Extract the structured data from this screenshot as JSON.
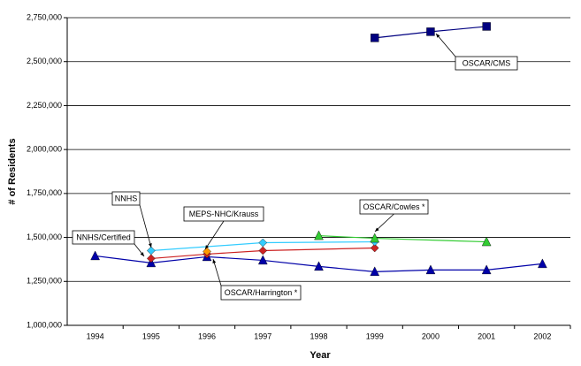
{
  "chart_data": {
    "type": "line",
    "x_label": "Year",
    "y_label": "# of Residents",
    "xlim": [
      1993.5,
      2002.5
    ],
    "xticks": [
      1994,
      1995,
      1996,
      1997,
      1998,
      1999,
      2000,
      2001,
      2002
    ],
    "ylim": [
      1000000,
      2750000
    ],
    "yticks": [
      {
        "value": 1000000,
        "label": "1,000,000"
      },
      {
        "value": 1250000,
        "label": "1,250,000"
      },
      {
        "value": 1500000,
        "label": "1,500,000"
      },
      {
        "value": 1750000,
        "label": "1,750,000"
      },
      {
        "value": 2000000,
        "label": "2,000,000"
      },
      {
        "value": 2250000,
        "label": "2,250,000"
      },
      {
        "value": 2500000,
        "label": "2,500,000"
      },
      {
        "value": 2750000,
        "label": "2,750,000"
      }
    ],
    "grid": true,
    "series": [
      {
        "name": "OSCAR/Harrington *",
        "color": "#0000a8",
        "marker": "triangle",
        "x": [
          1994,
          1995,
          1996,
          1997,
          1998,
          1999,
          2000,
          2001,
          2002
        ],
        "values": [
          1395000,
          1355000,
          1390000,
          1370000,
          1335000,
          1305000,
          1315000,
          1315000,
          1350000
        ]
      },
      {
        "name": "NNHS/Certified",
        "color": "#cc2222",
        "marker": "diamond",
        "x": [
          1995,
          1996,
          1997,
          1999
        ],
        "values": [
          1380000,
          1405000,
          1425000,
          1440000
        ]
      },
      {
        "name": "NNHS",
        "color": "#33ccff",
        "marker": "diamond",
        "x": [
          1995,
          1997,
          1999
        ],
        "values": [
          1425000,
          1470000,
          1475000
        ]
      },
      {
        "name": "MEPS-NHC/Krauss",
        "color": "#ff9900",
        "marker": "diamond",
        "x": [
          1996
        ],
        "values": [
          1420000
        ]
      },
      {
        "name": "OSCAR/Cowles *",
        "color": "#33cc33",
        "marker": "triangle",
        "x": [
          1998,
          1999,
          2001
        ],
        "values": [
          1510000,
          1495000,
          1475000
        ]
      },
      {
        "name": "OSCAR/CMS",
        "color": "#000080",
        "marker": "square",
        "x": [
          1999,
          2000,
          2001
        ],
        "values": [
          2635000,
          2670000,
          2700000
        ]
      }
    ]
  }
}
